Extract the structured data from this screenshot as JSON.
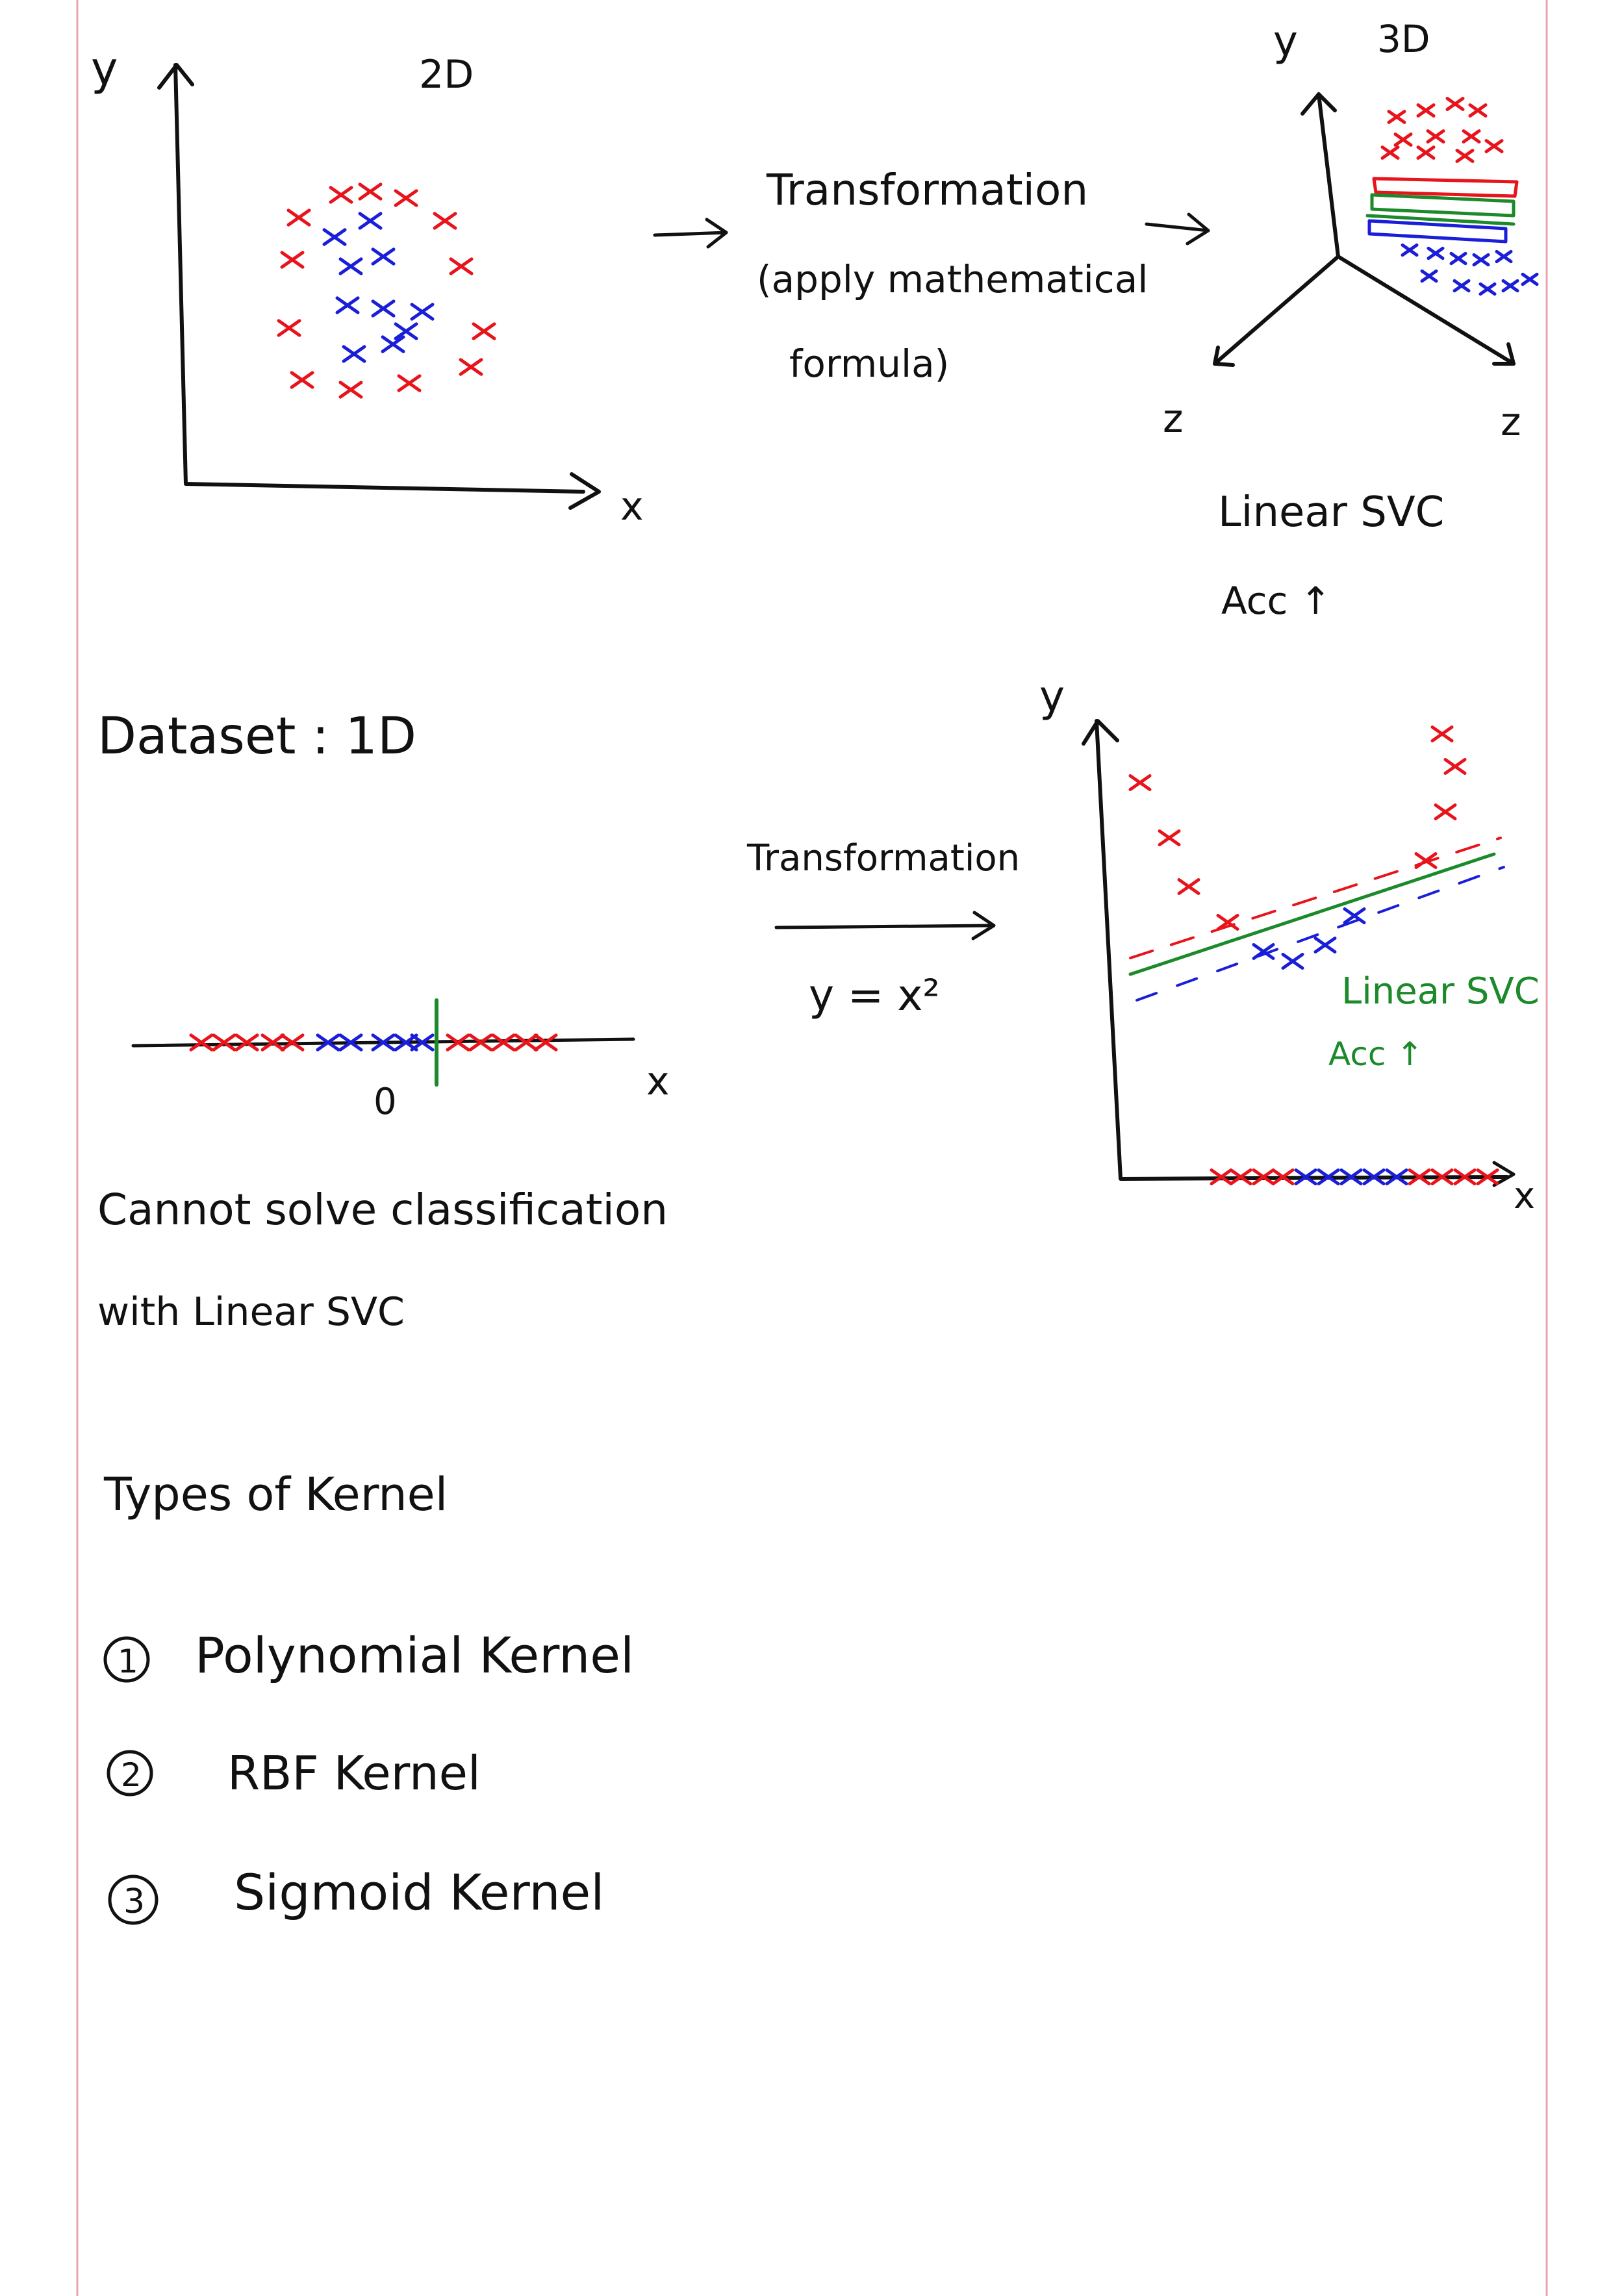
{
  "colors": {
    "ink": "#111111",
    "red": "#e8131b",
    "blue": "#1a1ed8",
    "green": "#1c8a2a",
    "margin_line": "#e9a2b2"
  },
  "top_left": {
    "y_label": "y",
    "x_label": "x",
    "title": "2D"
  },
  "top_middle": {
    "line1": "Transformation",
    "line2": "(apply mathematical",
    "line3": "formula)"
  },
  "top_right": {
    "y_label": "y",
    "title": "3D",
    "z_left": "z",
    "z_right": "z",
    "model": "Linear SVC",
    "acc": "Acc ↑"
  },
  "dataset": {
    "label": "Dataset : 1D",
    "origin": "0",
    "x_label": "x"
  },
  "middle_transform": {
    "label": "Transformation",
    "formula": "y = x²"
  },
  "right_plot": {
    "y_label": "y",
    "x_label": "x",
    "model": "Linear SVC",
    "acc": "Acc ↑"
  },
  "notes": {
    "line1": "Cannot solve classification",
    "line2": "with Linear SVC"
  },
  "kernels": {
    "heading": "Types of Kernel",
    "items": [
      {
        "num": "1",
        "label": "Polynomial Kernel"
      },
      {
        "num": "2",
        "label": "RBF Kernel"
      },
      {
        "num": "3",
        "label": "Sigmoid Kernel"
      }
    ]
  }
}
